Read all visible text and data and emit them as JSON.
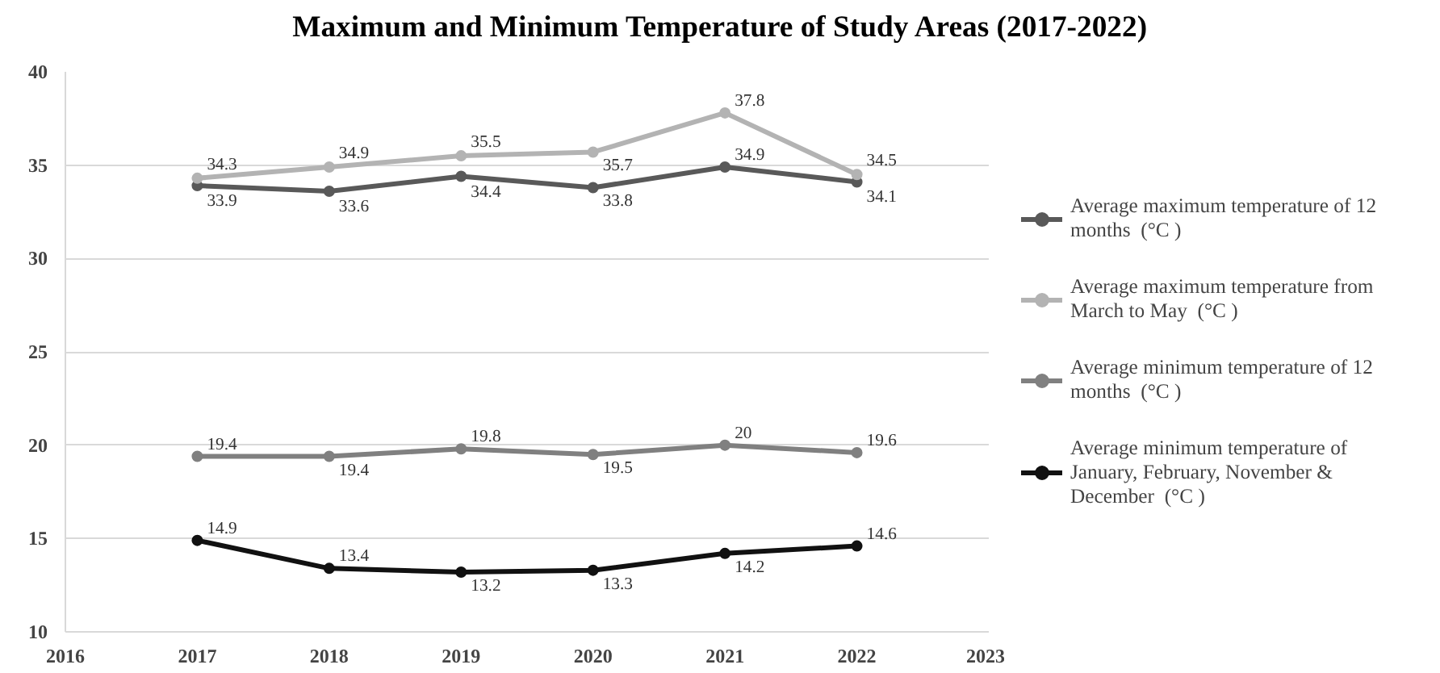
{
  "chart_data": {
    "type": "line",
    "title": "Maximum and Minimum Temperature of Study Areas (2017-2022)",
    "x": [
      2017,
      2018,
      2019,
      2020,
      2021,
      2022
    ],
    "series": [
      {
        "name": "Average maximum temperature of 12 months  (°C )",
        "color": "#595959",
        "values": [
          33.9,
          33.6,
          34.4,
          33.8,
          34.9,
          34.1
        ]
      },
      {
        "name": "Average maximum temperature from March to May  (°C )",
        "color": "#b3b3b3",
        "values": [
          34.3,
          34.9,
          35.5,
          35.7,
          37.8,
          34.5
        ]
      },
      {
        "name": "Average minimum temperature of 12 months  (°C )",
        "color": "#808080",
        "values": [
          19.4,
          19.4,
          19.8,
          19.5,
          20,
          19.6
        ]
      },
      {
        "name": "Average minimum temperature of January, February, November & December  (°C )",
        "color": "#111111",
        "values": [
          14.9,
          13.4,
          13.2,
          13.3,
          14.2,
          14.6
        ]
      }
    ],
    "xlim": [
      2016,
      2023
    ],
    "xticks": [
      2016,
      2017,
      2018,
      2019,
      2020,
      2021,
      2022,
      2023
    ],
    "ylim": [
      10,
      40
    ],
    "yticks": [
      10,
      15,
      20,
      25,
      30,
      35,
      40
    ],
    "grid": "y",
    "legend": "right",
    "marker": "circle",
    "line_style": "solid",
    "data_labels": true
  }
}
